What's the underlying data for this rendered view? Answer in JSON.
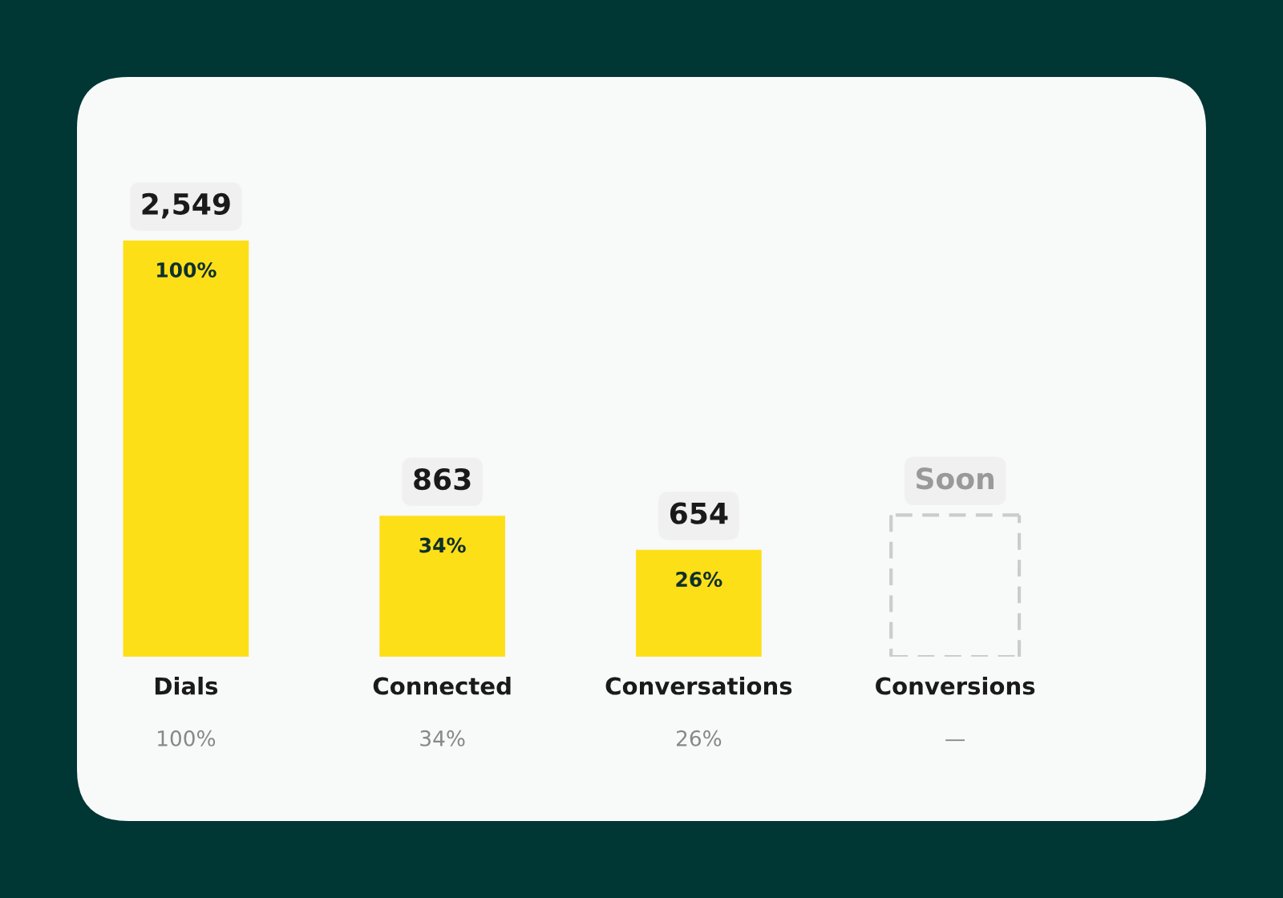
{
  "chart_data": {
    "type": "bar",
    "categories": [
      "Dials",
      "Connected",
      "Conversations",
      "Conversions"
    ],
    "values": [
      2549,
      863,
      654,
      null
    ],
    "color": "#fddf18",
    "value_labels": [
      "2,549",
      "863",
      "654",
      "Soon"
    ],
    "annotations": [
      "100%",
      "34%",
      "26%",
      "100%",
      "34%",
      "26%",
      "—"
    ],
    "tick_labels": "x",
    "grid": false,
    "legend": false
  }
}
